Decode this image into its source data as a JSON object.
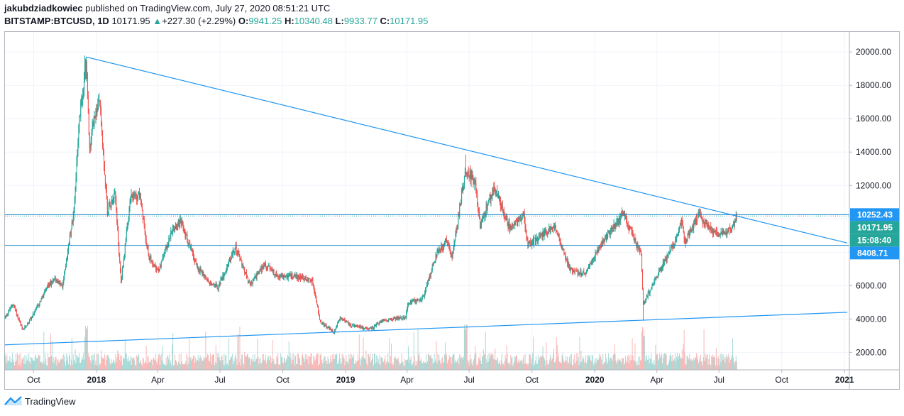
{
  "header": {
    "author": "jakubdziadkowiec",
    "published_text": " published on TradingView.com, July 27, 2020 08:51:21 UTC",
    "symbol": "BITSTAMP:BTCUSD, 1D",
    "last": "10171.95",
    "change_arrow": "▲",
    "change": "+227.30 (+2.29%)",
    "o_label": "O:",
    "o_value": "9941.25",
    "h_label": "H:",
    "h_value": "10340.48",
    "l_label": "L:",
    "l_value": "9933.77",
    "c_label": "C:",
    "c_value": "10171.95"
  },
  "footer": {
    "brand": "TradingView"
  },
  "colors": {
    "up": "#26a69a",
    "down": "#ef5350",
    "trendline": "#2196f3",
    "hline": "#1e88c7",
    "label_blue": "#2196f3",
    "label_teal": "#26a69a"
  },
  "chart_data": {
    "type": "candlestick",
    "y_ticks": [
      "2000.00",
      "4000.00",
      "6000.00",
      "8000.00",
      "10000.00",
      "12000.00",
      "14000.00",
      "16000.00",
      "18000.00",
      "20000.00"
    ],
    "y_tick_values": [
      2000,
      4000,
      6000,
      8000,
      10000,
      12000,
      14000,
      16000,
      18000,
      20000
    ],
    "ylim": [
      950,
      21200
    ],
    "x_ticks": [
      {
        "label": "Oct",
        "date": "2017-10-01",
        "bold": false
      },
      {
        "label": "2018",
        "date": "2018-01-01",
        "bold": true
      },
      {
        "label": "Apr",
        "date": "2018-04-01",
        "bold": false
      },
      {
        "label": "Jul",
        "date": "2018-07-01",
        "bold": false
      },
      {
        "label": "Oct",
        "date": "2018-10-01",
        "bold": false
      },
      {
        "label": "2019",
        "date": "2019-01-01",
        "bold": true
      },
      {
        "label": "Apr",
        "date": "2019-04-01",
        "bold": false
      },
      {
        "label": "Jul",
        "date": "2019-07-01",
        "bold": false
      },
      {
        "label": "Oct",
        "date": "2019-10-01",
        "bold": false
      },
      {
        "label": "2020",
        "date": "2020-01-01",
        "bold": true
      },
      {
        "label": "Apr",
        "date": "2020-04-01",
        "bold": false
      },
      {
        "label": "Jul",
        "date": "2020-07-01",
        "bold": false
      },
      {
        "label": "Oct",
        "date": "2020-10-01",
        "bold": false
      },
      {
        "label": "2021",
        "date": "2021-01-01",
        "bold": true
      }
    ],
    "xlim": [
      "2017-08-20",
      "2021-01-08"
    ],
    "price_path": [
      [
        "2017-08-20",
        4100
      ],
      [
        "2017-09-01",
        4900
      ],
      [
        "2017-09-15",
        3300
      ],
      [
        "2017-10-01",
        4300
      ],
      [
        "2017-10-20",
        5800
      ],
      [
        "2017-11-01",
        6500
      ],
      [
        "2017-11-12",
        5900
      ],
      [
        "2017-11-29",
        10500
      ],
      [
        "2017-12-07",
        16000
      ],
      [
        "2017-12-17",
        19500
      ],
      [
        "2017-12-22",
        14000
      ],
      [
        "2017-12-27",
        15800
      ],
      [
        "2018-01-06",
        17000
      ],
      [
        "2018-01-17",
        10500
      ],
      [
        "2018-01-28",
        11700
      ],
      [
        "2018-02-06",
        6200
      ],
      [
        "2018-02-20",
        11200
      ],
      [
        "2018-03-05",
        11500
      ],
      [
        "2018-03-18",
        7800
      ],
      [
        "2018-04-01",
        6800
      ],
      [
        "2018-04-24",
        9600
      ],
      [
        "2018-05-05",
        9800
      ],
      [
        "2018-05-28",
        7200
      ],
      [
        "2018-06-13",
        6300
      ],
      [
        "2018-06-28",
        5900
      ],
      [
        "2018-07-24",
        8300
      ],
      [
        "2018-08-14",
        6000
      ],
      [
        "2018-09-04",
        7300
      ],
      [
        "2018-09-25",
        6500
      ],
      [
        "2018-10-15",
        6600
      ],
      [
        "2018-11-13",
        6300
      ],
      [
        "2018-11-25",
        3800
      ],
      [
        "2018-12-15",
        3200
      ],
      [
        "2018-12-24",
        4100
      ],
      [
        "2019-01-10",
        3600
      ],
      [
        "2019-02-07",
        3400
      ],
      [
        "2019-02-24",
        3900
      ],
      [
        "2019-03-30",
        4100
      ],
      [
        "2019-04-02",
        4900
      ],
      [
        "2019-04-25",
        5300
      ],
      [
        "2019-05-14",
        7900
      ],
      [
        "2019-05-30",
        8700
      ],
      [
        "2019-06-06",
        7700
      ],
      [
        "2019-06-26",
        13000
      ],
      [
        "2019-07-10",
        12100
      ],
      [
        "2019-07-17",
        9500
      ],
      [
        "2019-08-06",
        11900
      ],
      [
        "2019-08-29",
        9500
      ],
      [
        "2019-09-19",
        10200
      ],
      [
        "2019-09-25",
        8400
      ],
      [
        "2019-10-25",
        9300
      ],
      [
        "2019-11-05",
        9400
      ],
      [
        "2019-11-25",
        7000
      ],
      [
        "2019-12-17",
        6700
      ],
      [
        "2020-01-14",
        8800
      ],
      [
        "2020-02-12",
        10300
      ],
      [
        "2020-02-28",
        8700
      ],
      [
        "2020-03-09",
        7900
      ],
      [
        "2020-03-12",
        4900
      ],
      [
        "2020-03-30",
        6400
      ],
      [
        "2020-04-29",
        8800
      ],
      [
        "2020-05-08",
        9900
      ],
      [
        "2020-05-11",
        8600
      ],
      [
        "2020-06-01",
        10200
      ],
      [
        "2020-06-27",
        9100
      ],
      [
        "2020-07-14",
        9250
      ],
      [
        "2020-07-22",
        9550
      ],
      [
        "2020-07-27",
        10171.95
      ]
    ],
    "annotated_peaks": [
      {
        "date": "2017-12-17",
        "high": 19700
      },
      {
        "date": "2019-06-26",
        "high": 13850
      },
      {
        "date": "2020-03-12",
        "low": 3900
      }
    ],
    "trendlines": [
      {
        "name": "",
        "from": [
          "2017-12-17",
          19700
        ],
        "to": [
          "2021-01-05",
          8550
        ]
      },
      {
        "name": "",
        "from": [
          "2017-08-20",
          2450
        ],
        "to": [
          "2021-01-05",
          4400
        ]
      }
    ],
    "horizontal_lines": [
      {
        "value": 10252.43,
        "style": "solid"
      },
      {
        "value": 10171.95,
        "style": "dotted"
      },
      {
        "value": 8408.71,
        "style": "solid"
      }
    ],
    "price_labels": [
      {
        "text": "10252.43",
        "value": 10252.43,
        "color": "blue"
      },
      {
        "text": "10171.95",
        "value": 10171.95,
        "color": "teal"
      },
      {
        "text": "15:08:40",
        "value": 8800,
        "color": "teal"
      },
      {
        "text": "8408.71",
        "value": 8408.71,
        "color": "blue"
      }
    ],
    "last_date": "2020-07-27",
    "volume_note": "volume histogram along bottom, colored by candle direction"
  }
}
